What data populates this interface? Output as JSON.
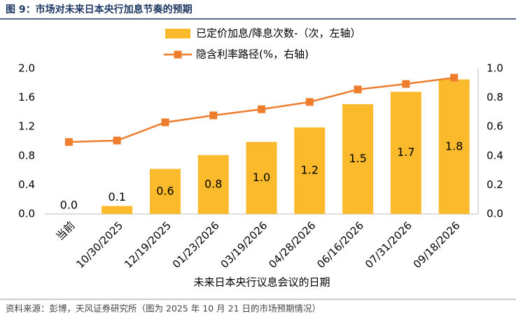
{
  "chart_data": {
    "type": "bar_line",
    "title": "图 9：市场对未来日本央行加息节奏的预期",
    "source": "资料来源：彭博，天风证券研究所（图为 2025 年 10 月 21 日的市场预期情况）",
    "x_label": "未来日本央行议息会议的日期",
    "categories": [
      "当前",
      "10/30/2025",
      "12/19/2025",
      "01/23/2026",
      "03/19/2026",
      "04/28/2026",
      "06/16/2026",
      "07/31/2026",
      "09/18/2026"
    ],
    "series": [
      {
        "name": "已定价加息/降息次数-（次，左轴）",
        "type": "bar",
        "color": "#FBBA2B",
        "values": [
          0,
          0.11,
          0.62,
          0.81,
          0.99,
          1.19,
          1.51,
          1.68,
          1.85
        ],
        "value_labels": [
          "0.0",
          "0.1",
          "0.6",
          "0.8",
          "1.0",
          "1.2",
          "1.5",
          "1.7",
          "1.8"
        ]
      },
      {
        "name": "隐含利率路径(%，右轴)",
        "type": "line",
        "color": "#EE7D2E",
        "axis": "y2",
        "values": [
          0.495,
          0.505,
          0.63,
          0.678,
          0.72,
          0.77,
          0.856,
          0.894,
          0.937
        ]
      }
    ],
    "ylim": [
      0,
      2
    ],
    "yticks": [
      {
        "value": 0,
        "label": "0.0"
      },
      0.4,
      0.8,
      1.2,
      1.6,
      {
        "value": 2,
        "label": "2.0"
      }
    ],
    "y2lim": [
      0,
      1
    ],
    "y2ticks": [
      {
        "value": 0,
        "label": "0.0"
      },
      0.2,
      0.4,
      0.6,
      0.8,
      {
        "value": 1,
        "label": "1.0"
      }
    ]
  }
}
